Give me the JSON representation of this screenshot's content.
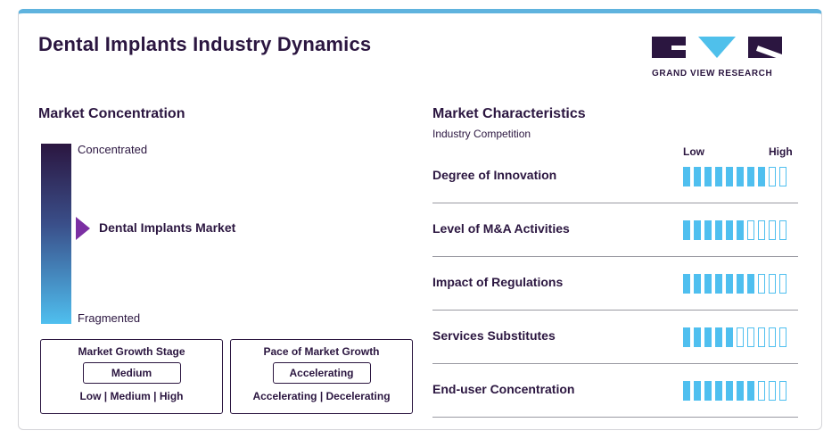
{
  "header": {
    "title": "Dental Implants Industry Dynamics",
    "logo_text": "GRAND VIEW RESEARCH"
  },
  "concentration": {
    "title": "Market Concentration",
    "top_label": "Concentrated",
    "bottom_label": "Fragmented",
    "marker_label": "Dental Implants Market"
  },
  "growth_stage": {
    "title": "Market Growth Stage",
    "value": "Medium",
    "options": "Low | Medium | High"
  },
  "growth_pace": {
    "title": "Pace of Market Growth",
    "value": "Accelerating",
    "options": "Accelerating | Decelerating"
  },
  "characteristics": {
    "title": "Market Characteristics",
    "subtitle": "Industry Competition",
    "low_label": "Low",
    "high_label": "High",
    "total_segments": 10,
    "accent_color": "#4fbfef",
    "rows": [
      {
        "label": "Degree of Innovation",
        "filled": 8
      },
      {
        "label": "Level of M&A Activities",
        "filled": 6
      },
      {
        "label": "Impact of Regulations",
        "filled": 7
      },
      {
        "label": "Services Substitutes",
        "filled": 5
      },
      {
        "label": "End-user Concentration",
        "filled": 7
      }
    ]
  }
}
